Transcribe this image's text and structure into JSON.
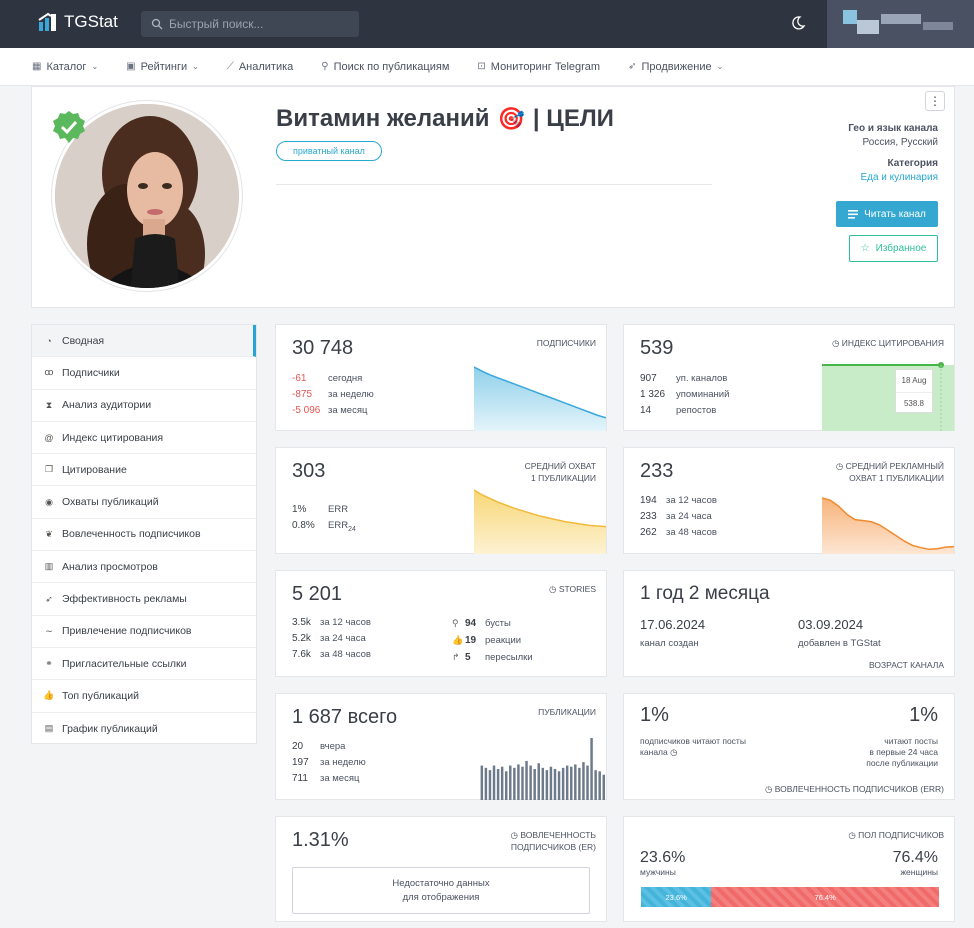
{
  "header": {
    "brand": "TGStat",
    "search_placeholder": "Быстрый поиск..."
  },
  "nav": {
    "items": [
      {
        "label": "Каталог",
        "icon": "grid-icon",
        "dropdown": true
      },
      {
        "label": "Рейтинги",
        "icon": "rating-icon",
        "dropdown": true
      },
      {
        "label": "Аналитика",
        "icon": "chart-line-icon",
        "dropdown": false
      },
      {
        "label": "Поиск по публикациям",
        "icon": "search-icon",
        "dropdown": false
      },
      {
        "label": "Мониторинг Telegram",
        "icon": "monitor-icon",
        "dropdown": false
      },
      {
        "label": "Продвижение",
        "icon": "rocket-icon",
        "dropdown": true
      }
    ]
  },
  "channel": {
    "title": "Витамин желаний",
    "title_suffix": "| ЦЕЛИ",
    "badge": "приватный канал",
    "geo_label": "Гео и язык канала",
    "geo_value": "Россия, Русский",
    "category_label": "Категория",
    "category_value": "Еда и кулинария",
    "read_button": "Читать канал",
    "favorite_button": "Избранное",
    "emoji": "🎯"
  },
  "sidebar": {
    "items": [
      {
        "label": "Сводная",
        "icon": "dashboard-icon"
      },
      {
        "label": "Подписчики",
        "icon": "users-icon"
      },
      {
        "label": "Анализ аудитории",
        "icon": "hourglass-icon"
      },
      {
        "label": "Индекс цитирования",
        "icon": "at-icon"
      },
      {
        "label": "Цитирование",
        "icon": "quote-icon"
      },
      {
        "label": "Охваты публикаций",
        "icon": "eye-icon"
      },
      {
        "label": "Вовлеченность подписчиков",
        "icon": "engagement-icon"
      },
      {
        "label": "Анализ просмотров",
        "icon": "bar-chart-icon"
      },
      {
        "label": "Эффективность рекламы",
        "icon": "megaphone-icon"
      },
      {
        "label": "Привлечение подписчиков",
        "icon": "trend-icon"
      },
      {
        "label": "Пригласительные ссылки",
        "icon": "link-icon"
      },
      {
        "label": "Топ публикаций",
        "icon": "thumbs-up-icon"
      },
      {
        "label": "График публикаций",
        "icon": "calendar-icon"
      }
    ]
  },
  "subscribers": {
    "value": "30 748",
    "label": "подписчики",
    "rows": [
      {
        "v": "-61",
        "l": "сегодня"
      },
      {
        "v": "-875",
        "l": "за неделю"
      },
      {
        "v": "-5 096",
        "l": "за месяц"
      }
    ],
    "trend": [
      100,
      93,
      87,
      82,
      77,
      72,
      67,
      62,
      57,
      52,
      47,
      42,
      37,
      32,
      27,
      22,
      18
    ]
  },
  "citation": {
    "value": "539",
    "label": "индекс цитирования",
    "rows": [
      {
        "v": "907",
        "l": "уп. каналов"
      },
      {
        "v": "1 326",
        "l": "упоминаний"
      },
      {
        "v": "14",
        "l": "репостов"
      }
    ],
    "tooltip_date": "18 Aug",
    "tooltip_value": "538.8"
  },
  "reach": {
    "value": "303",
    "label1": "средний охват",
    "label2": "1 публикации",
    "rows": [
      {
        "v": "1%",
        "l": "ERR"
      },
      {
        "v": "0.8%",
        "l": "ERR",
        "sub": "24"
      }
    ],
    "trend": [
      100,
      92,
      86,
      80,
      75,
      70,
      66,
      62,
      58,
      55,
      52,
      49,
      47,
      45,
      43,
      42,
      41
    ]
  },
  "ad_reach": {
    "value": "233",
    "label1": "средний рекламный",
    "label2": "охват 1 публикации",
    "rows": [
      {
        "v": "194",
        "l": "за 12 часов"
      },
      {
        "v": "233",
        "l": "за 24 часа"
      },
      {
        "v": "262",
        "l": "за 48 часов"
      }
    ],
    "trend": [
      100,
      96,
      85,
      70,
      60,
      58,
      56,
      50,
      40,
      30,
      20,
      12,
      8,
      5,
      6,
      9,
      10
    ]
  },
  "stories": {
    "value": "5 201",
    "label": "stories",
    "left": [
      {
        "v": "3.5k",
        "l": "за 12 часов"
      },
      {
        "v": "5.2k",
        "l": "за 24 часа"
      },
      {
        "v": "7.6k",
        "l": "за 48 часов"
      }
    ],
    "right": [
      {
        "icon": "boost-icon",
        "v": "94",
        "l": "бусты"
      },
      {
        "icon": "thumbs-up-icon",
        "v": "19",
        "l": "реакции"
      },
      {
        "icon": "share-icon",
        "v": "5",
        "l": "пересылки"
      }
    ]
  },
  "age": {
    "value": "1 год 2 месяца",
    "created_date": "17.06.2024",
    "created_label": "канал создан",
    "added_date": "03.09.2024",
    "added_label": "добавлен в TGStat",
    "footer": "возраст канала"
  },
  "publications": {
    "value": "1 687",
    "suffix": "всего",
    "label": "публикации",
    "rows": [
      {
        "v": "20",
        "l": "вчера"
      },
      {
        "v": "197",
        "l": "за неделю"
      },
      {
        "v": "711",
        "l": "за месяц"
      }
    ],
    "bars": [
      30,
      28,
      26,
      30,
      27,
      29,
      25,
      30,
      28,
      31,
      29,
      34,
      30,
      27,
      32,
      28,
      26,
      29,
      27,
      25,
      28,
      30,
      29,
      31,
      28,
      33,
      30,
      54,
      26,
      25,
      22
    ]
  },
  "err": {
    "left_value": "1%",
    "left_label1": "подписчиков читают посты",
    "left_label2": "канала",
    "right_value": "1%",
    "right_label1": "читают посты",
    "right_label2": "в первые 24 часа",
    "right_label3": "после публикации",
    "footer": "вовлеченность подписчиков (err)"
  },
  "er": {
    "value": "1.31%",
    "label1": "вовлеченность",
    "label2": "подписчиков (er)",
    "empty1": "Недостаточно данных",
    "empty2": "для отображения"
  },
  "gender": {
    "label": "пол подписчиков",
    "male_value": "23.6%",
    "male_label": "мужчины",
    "female_value": "76.4%",
    "female_label": "женщины",
    "male_share": 23.6,
    "female_share": 76.4,
    "male_color": "#45b4db",
    "female_color": "#f06a6a"
  }
}
